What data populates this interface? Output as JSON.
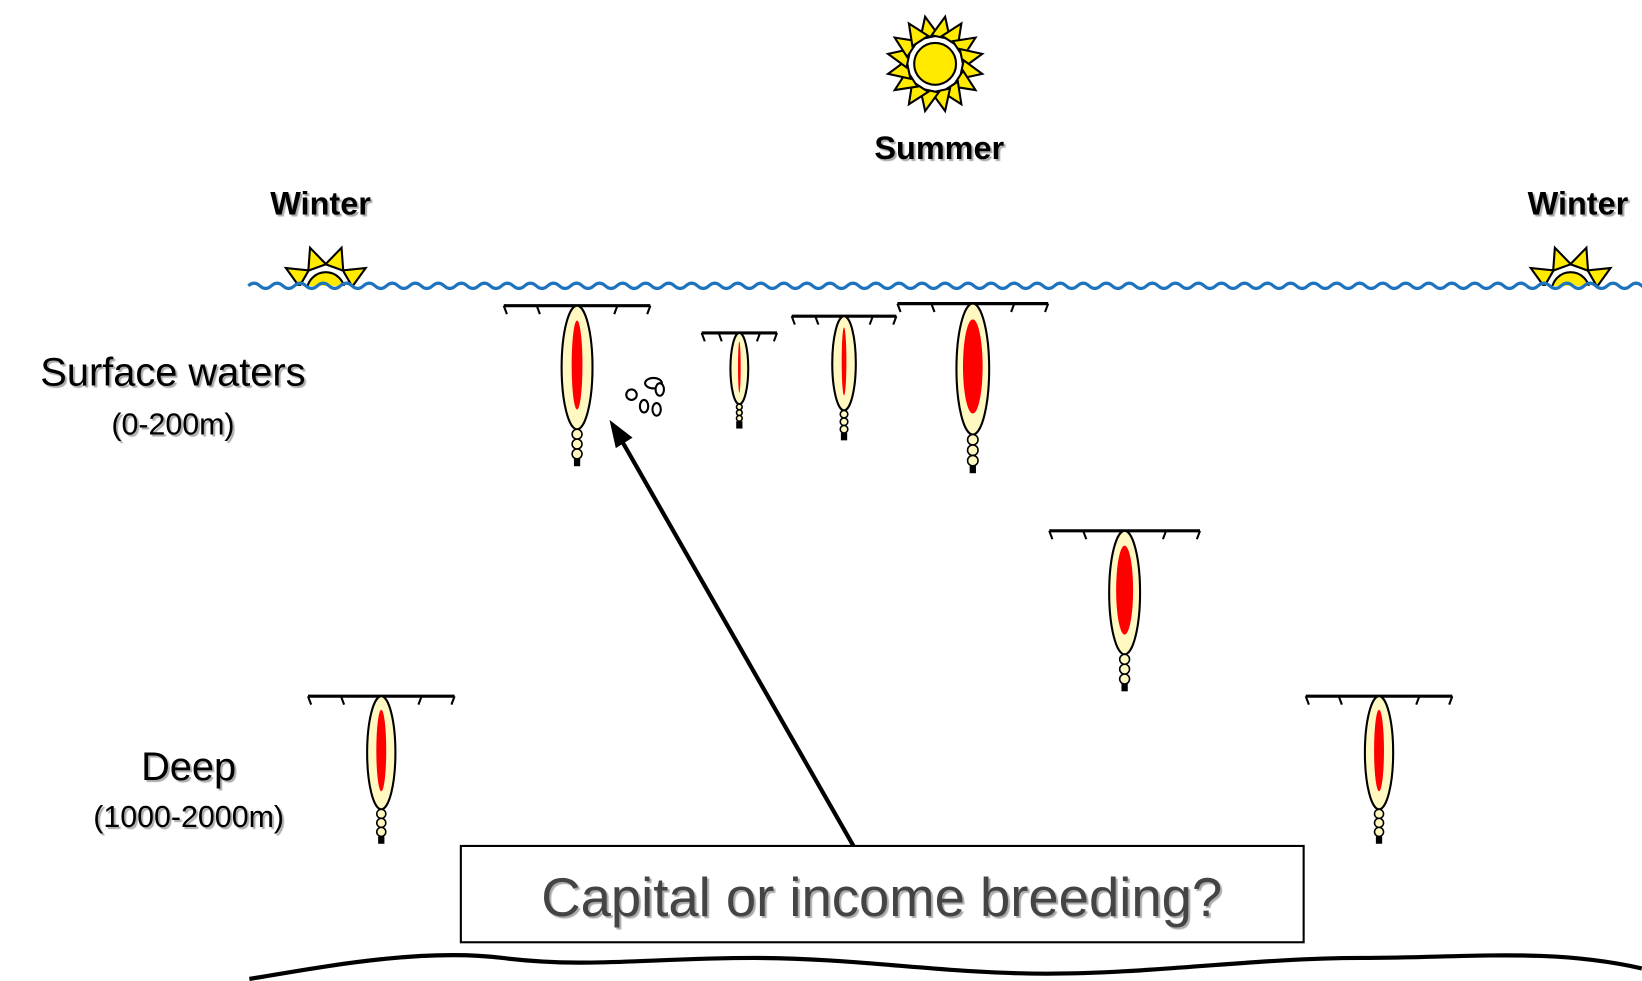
{
  "seasons": {
    "summer": "Summer",
    "winter_left": "Winter",
    "winter_right": "Winter"
  },
  "zones": {
    "surface": {
      "name": "Surface waters",
      "depth": "(0-200m)"
    },
    "deep": {
      "name": "Deep",
      "depth": "(1000-2000m)"
    }
  },
  "question": "Capital or income breeding?"
}
